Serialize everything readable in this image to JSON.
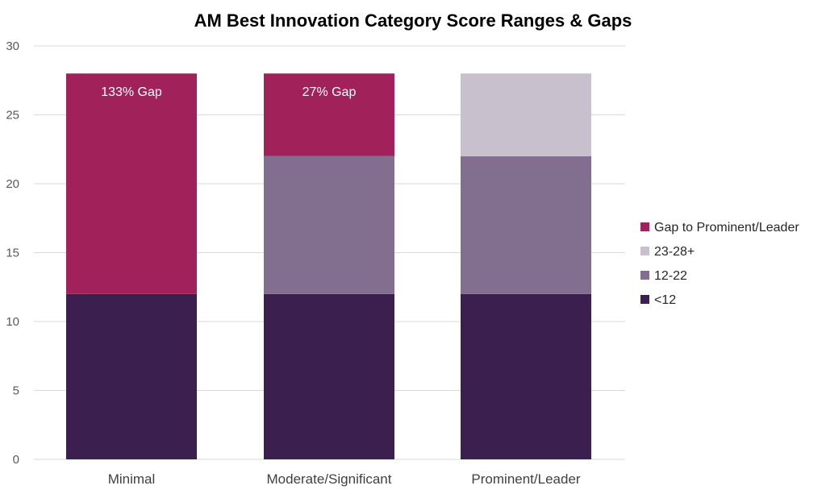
{
  "chart_data": {
    "type": "bar",
    "stacked": true,
    "title": "AM Best Innovation Category Score Ranges & Gaps",
    "xlabel": "",
    "ylabel": "",
    "ylim": [
      0,
      30
    ],
    "yticks": [
      0,
      5,
      10,
      15,
      20,
      25,
      30
    ],
    "grid": true,
    "legend_position": "right",
    "categories": [
      "Minimal",
      "Moderate/Significant",
      "Prominent/Leader"
    ],
    "series": [
      {
        "name": "<12",
        "color": "#3b1f4f",
        "values": [
          12,
          12,
          12
        ]
      },
      {
        "name": "12-22",
        "color": "#826f8f",
        "values": [
          0,
          10,
          10
        ]
      },
      {
        "name": "23-28+",
        "color": "#c8c1cd",
        "values": [
          0,
          0,
          6
        ]
      },
      {
        "name": "Gap to Prominent/Leader",
        "color": "#a1225a",
        "values": [
          16,
          6,
          0
        ]
      }
    ],
    "legend_order": [
      "Gap to Prominent/Leader",
      "23-28+",
      "12-22",
      "<12"
    ],
    "annotations": [
      {
        "category": "Minimal",
        "text": "133% Gap"
      },
      {
        "category": "Moderate/Significant",
        "text": "27% Gap"
      }
    ]
  }
}
